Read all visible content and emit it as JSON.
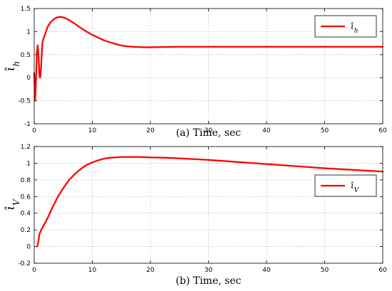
{
  "chart_data": [
    {
      "type": "line",
      "id": "top",
      "xlabel": "(a) Time, sec",
      "ylabel": "ι̂_h",
      "xlim": [
        0,
        60
      ],
      "ylim": [
        -1,
        1.5
      ],
      "xticks": [
        "0",
        "10",
        "20",
        "30",
        "40",
        "50",
        "60"
      ],
      "yticks": [
        "-1",
        "-0.5",
        "0",
        "0.5",
        "1",
        "1.5"
      ],
      "grid": true,
      "legend_position": "top-right",
      "series": [
        {
          "name": "ι̂_h",
          "color": "#ff0000",
          "x": [
            0,
            0.15,
            0.3,
            0.45,
            0.6,
            0.75,
            0.9,
            1.0,
            1.1,
            1.25,
            1.4,
            1.6,
            1.9,
            2.3,
            2.8,
            3.4,
            4.0,
            4.6,
            5.2,
            6.0,
            7.0,
            8.0,
            9.0,
            10.0,
            11.0,
            12.0,
            13.0,
            14.0,
            15.0,
            16.0,
            17.0,
            18.0,
            19.0,
            20.0,
            22.0,
            25.0,
            30.0,
            35.0,
            40.0,
            45.0,
            50.0,
            55.0,
            60.0
          ],
          "y": [
            0.1,
            -0.5,
            -0.1,
            0.55,
            0.7,
            0.45,
            0.05,
            0.0,
            0.05,
            0.4,
            0.75,
            0.85,
            0.95,
            1.1,
            1.2,
            1.27,
            1.31,
            1.32,
            1.3,
            1.25,
            1.17,
            1.08,
            1.0,
            0.93,
            0.87,
            0.81,
            0.77,
            0.73,
            0.7,
            0.68,
            0.67,
            0.665,
            0.66,
            0.66,
            0.665,
            0.67,
            0.67,
            0.67,
            0.67,
            0.67,
            0.67,
            0.67,
            0.67
          ]
        }
      ]
    },
    {
      "type": "line",
      "id": "bottom",
      "xlabel": "(b) Time, sec",
      "ylabel": "ι̂_V",
      "xlim": [
        0,
        60
      ],
      "ylim": [
        -0.2,
        1.2
      ],
      "xticks": [
        "0",
        "10",
        "20",
        "30",
        "40",
        "50",
        "60"
      ],
      "yticks": [
        "-0.2",
        "0",
        "0.2",
        "0.4",
        "0.6",
        "0.8",
        "1",
        "1.2"
      ],
      "grid": true,
      "legend_position": "right",
      "series": [
        {
          "name": "ι̂_V",
          "color": "#ff0000",
          "x": [
            0.5,
            0.7,
            0.9,
            1.2,
            1.6,
            2.0,
            2.5,
            3.0,
            4.0,
            5.0,
            6.0,
            7.0,
            8.0,
            9.0,
            10.0,
            11.0,
            12.0,
            13.0,
            14.0,
            15.0,
            16.0,
            18.0,
            20.0,
            23.0,
            26.0,
            30.0,
            35.0,
            40.0,
            45.0,
            50.0,
            55.0,
            60.0
          ],
          "y": [
            0.0,
            0.05,
            0.15,
            0.2,
            0.25,
            0.3,
            0.37,
            0.45,
            0.59,
            0.7,
            0.8,
            0.87,
            0.93,
            0.98,
            1.01,
            1.035,
            1.055,
            1.065,
            1.07,
            1.075,
            1.075,
            1.075,
            1.07,
            1.065,
            1.055,
            1.04,
            1.015,
            0.99,
            0.965,
            0.94,
            0.92,
            0.9
          ]
        }
      ]
    }
  ]
}
